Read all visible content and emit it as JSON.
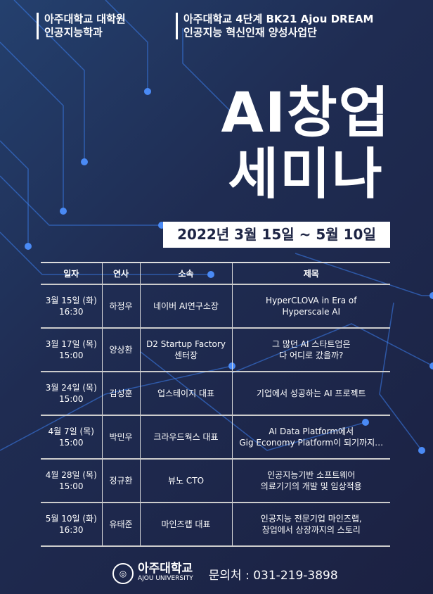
{
  "header": {
    "left": [
      "아주대학교 대학원",
      "인공지능학과"
    ],
    "right": [
      "아주대학교 4단계 BK21 Ajou DREAM",
      "인공지능 혁신인재 양성사업단"
    ]
  },
  "title": {
    "line1": "AI창업",
    "line2": "세미나"
  },
  "date_range": "2022년 3월 15일 ~ 5월 10일",
  "table": {
    "headers": [
      "일자",
      "연사",
      "소속",
      "제목"
    ],
    "rows": [
      {
        "date": "3월 15일 (화)",
        "time": "16:30",
        "speaker": "하정우",
        "org": "네이버 AI연구소장",
        "title": [
          "HyperCLOVA in Era of",
          "Hyperscale AI"
        ]
      },
      {
        "date": "3월 17일 (목)",
        "time": "15:00",
        "speaker": "양상환",
        "org": "D2 Startup Factory 센터장",
        "title": [
          "그 많던 AI 스타트업은",
          "다 어디로 갔을까?"
        ]
      },
      {
        "date": "3월 24일 (목)",
        "time": "15:00",
        "speaker": "김성훈",
        "org": "업스테이지 대표",
        "title": [
          "기업에서 성공하는 AI 프로젝트"
        ]
      },
      {
        "date": "4월  7일 (목)",
        "time": "15:00",
        "speaker": "박민우",
        "org": "크라우드웍스 대표",
        "title": [
          "AI Data Platform에서",
          "Gig Economy Platform이 되기까지…"
        ]
      },
      {
        "date": "4월 28일 (목)",
        "time": "15:00",
        "speaker": "정규환",
        "org": "뷰노 CTO",
        "title": [
          "인공지능기반 소프트웨어",
          "의료기기의 개발 및 임상적용"
        ]
      },
      {
        "date": "5월 10일  (화)",
        "time": "16:30",
        "speaker": "유태준",
        "org": "마인즈랩 대표",
        "title": [
          "인공지능 전문기업 마인즈랩,",
          "창업에서 상장까지의 스토리"
        ]
      }
    ]
  },
  "footer": {
    "university_ko": "아주대학교",
    "university_en": "AJOU UNIVERSITY",
    "contact": "문의처 : 031-219-3898"
  },
  "colors": {
    "background": "#1f2c52",
    "circuit": "#3d7ff0",
    "banner": "#ffffff"
  }
}
